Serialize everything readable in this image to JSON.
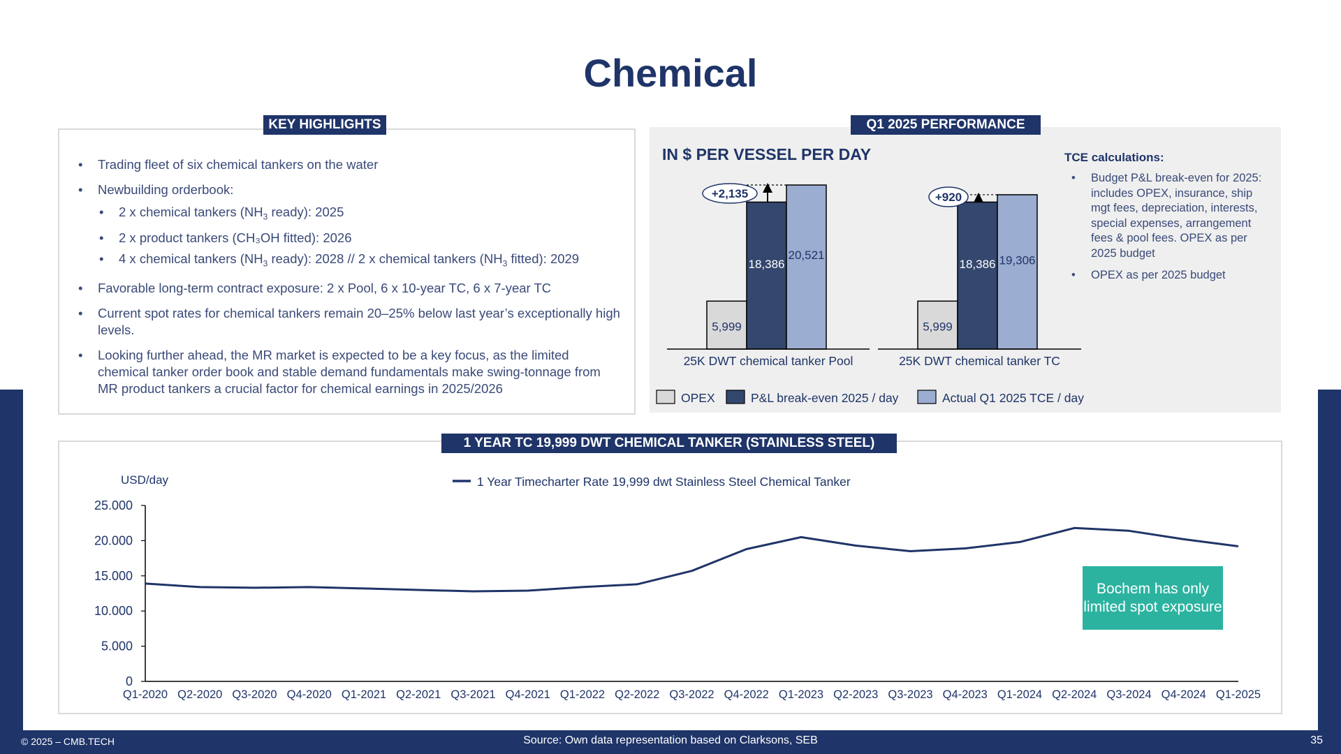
{
  "page": {
    "title": "Chemical",
    "footer_left": "© 2025 – CMB.TECH",
    "footer_source": "Source:  Own data representation based on Clarksons, SEB",
    "page_number": "35"
  },
  "colors": {
    "navy": "#1f3468",
    "opex": "#d9d9d9",
    "breakeven": "#34476e",
    "tce": "#9badd0",
    "teal": "#2bb3a0"
  },
  "highlights": {
    "header": "KEY HIGHLIGHTS",
    "item1": "Trading fleet of six chemical tankers on the water",
    "item2": "Newbuilding orderbook:",
    "sub1_a": "2 x chemical tankers (NH",
    "sub1_sub": "3",
    "sub1_b": " ready): 2025",
    "sub2": "2 x product tankers (CH₃OH fitted): 2026",
    "sub3_a": "4 x chemical tankers (NH",
    "sub3_sub1": "3",
    "sub3_b": " ready): 2028 // 2 x chemical tankers (NH",
    "sub3_sub2": "3",
    "sub3_c": " fitted): 2029",
    "item3": "Favorable long-term contract exposure: 2 x Pool, 6 x 10-year TC, 6 x 7-year TC",
    "item4": "Current spot rates for chemical tankers remain 20–25% below last year’s exceptionally high levels.",
    "item5": "Looking further ahead, the MR market is expected to be a key focus, as the limited chemical tanker order book and stable demand fundamentals make swing-tonnage from MR product tankers a crucial factor for chemical earnings in 2025/2026"
  },
  "performance": {
    "header": "Q1 2025 PERFORMANCE",
    "subtitle": "IN $ PER VESSEL PER DAY",
    "tce_title": "TCE calculations:",
    "tce_note1": "Budget P&L break-even for 2025: includes OPEX, insurance, ship mgt fees, depreciation, interests, special expenses, arrangement fees & pool fees. OPEX as per 2025 budget",
    "tce_note2": "OPEX as per 2025 budget"
  },
  "tc_chart_header": "1 YEAR TC 19,999 DWT CHEMICAL TANKER (STAINLESS STEEL)",
  "callout": "Bochem has only limited spot exposure",
  "chart_data": [
    {
      "type": "bar",
      "title": "IN $ PER VESSEL PER DAY",
      "categories": [
        "25K DWT chemical tanker Pool",
        "25K DWT chemical tanker TC"
      ],
      "series": [
        {
          "name": "OPEX",
          "values": [
            5999,
            5999
          ]
        },
        {
          "name": "P&L break-even 2025 / day",
          "values": [
            18386,
            18386
          ]
        },
        {
          "name": "Actual Q1 2025 TCE / day",
          "values": [
            20521,
            19306
          ]
        }
      ],
      "data_labels": [
        [
          "5,999",
          "18,386",
          "20,521"
        ],
        [
          "5,999",
          "18,386",
          "19,306"
        ]
      ],
      "annotations": [
        "+2,135",
        "+920"
      ],
      "legend": "bottom"
    },
    {
      "type": "line",
      "ylabel": "USD/day",
      "ylim": [
        0,
        25000
      ],
      "yticks": [
        0,
        5000,
        10000,
        15000,
        20000,
        25000
      ],
      "ytick_labels": [
        "0",
        "5.000",
        "10.000",
        "15.000",
        "20.000",
        "25.000"
      ],
      "x": [
        "Q1-2020",
        "Q2-2020",
        "Q3-2020",
        "Q4-2020",
        "Q1-2021",
        "Q2-2021",
        "Q3-2021",
        "Q4-2021",
        "Q1-2022",
        "Q2-2022",
        "Q3-2022",
        "Q4-2022",
        "Q1-2023",
        "Q2-2023",
        "Q3-2023",
        "Q4-2023",
        "Q1-2024",
        "Q2-2024",
        "Q3-2024",
        "Q4-2024",
        "Q1-2025"
      ],
      "series": [
        {
          "name": "1 Year Timecharter Rate 19,999 dwt Stainless Steel Chemical Tanker",
          "values": [
            13900,
            13400,
            13300,
            13400,
            13200,
            13000,
            12800,
            12900,
            13400,
            13800,
            15700,
            18800,
            20500,
            19300,
            18500,
            18900,
            19800,
            21800,
            21400,
            20200,
            19200
          ]
        }
      ],
      "legend": "top-center",
      "grid": false
    }
  ]
}
